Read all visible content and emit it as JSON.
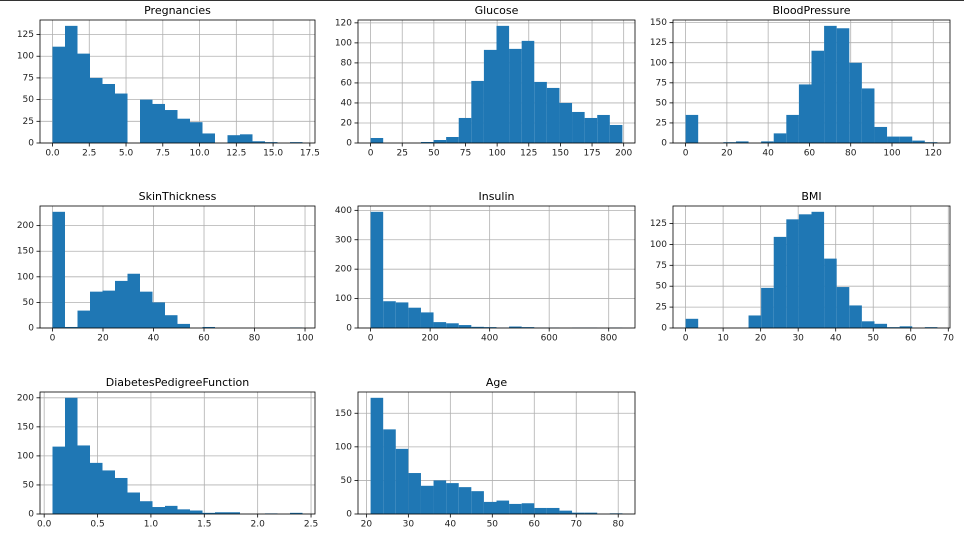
{
  "chart_data": [
    {
      "type": "histogram",
      "title": "Pregnancies",
      "color": "#1f77b4",
      "grid": true,
      "bins": [
        0,
        0.85,
        1.7,
        2.55,
        3.4,
        4.25,
        5.1,
        5.95,
        6.8,
        7.65,
        8.5,
        9.35,
        10.2,
        11.05,
        11.9,
        12.75,
        13.6,
        14.45,
        15.3,
        16.15,
        17
      ],
      "counts": [
        111,
        135,
        103,
        75,
        68,
        57,
        0,
        50,
        45,
        38,
        28,
        24,
        11,
        0,
        9,
        10,
        2,
        1,
        0,
        1
      ],
      "xlim": [
        -0.85,
        17.85
      ],
      "ylim": [
        0,
        141.75
      ],
      "xticks": [
        {
          "value": 0,
          "label": "0.0"
        },
        {
          "value": 2.5,
          "label": "2.5"
        },
        {
          "value": 5,
          "label": "5.0"
        },
        {
          "value": 7.5,
          "label": "7.5"
        },
        {
          "value": 10,
          "label": "10.0"
        },
        {
          "value": 12.5,
          "label": "12.5"
        },
        {
          "value": 15,
          "label": "15.0"
        },
        {
          "value": 17.5,
          "label": "17.5"
        }
      ],
      "yticks": [
        0,
        25,
        50,
        75,
        100,
        125
      ]
    },
    {
      "type": "histogram",
      "title": "Glucose",
      "color": "#1f77b4",
      "grid": true,
      "bins": [
        0,
        9.95,
        19.9,
        29.85,
        39.8,
        49.75,
        59.7,
        69.65,
        79.6,
        89.55,
        99.5,
        109.45,
        119.4,
        129.35,
        139.3,
        149.25,
        159.2,
        169.15,
        179.1,
        189.05,
        199
      ],
      "counts": [
        5,
        0,
        0,
        0,
        1,
        3,
        6,
        25,
        62,
        93,
        117,
        94,
        102,
        61,
        55,
        40,
        31,
        25,
        28,
        18
      ],
      "xlim": [
        -9.95,
        208.95
      ],
      "ylim": [
        0,
        122.85
      ],
      "xticks": [
        0,
        25,
        50,
        75,
        100,
        125,
        150,
        175,
        200
      ],
      "yticks": [
        0,
        20,
        40,
        60,
        80,
        100,
        120
      ]
    },
    {
      "type": "histogram",
      "title": "BloodPressure",
      "color": "#1f77b4",
      "grid": true,
      "bins": [
        0,
        6.1,
        12.2,
        18.3,
        24.4,
        30.5,
        36.6,
        42.7,
        48.8,
        54.9,
        61,
        67.1,
        73.2,
        79.3,
        85.4,
        91.5,
        97.6,
        103.7,
        109.8,
        115.9,
        122
      ],
      "counts": [
        35,
        0,
        0,
        1,
        2,
        0,
        2,
        12,
        35,
        73,
        115,
        146,
        143,
        100,
        68,
        20,
        8,
        8,
        3,
        1
      ],
      "xlim": [
        -6.1,
        128.1
      ],
      "ylim": [
        0,
        153.3
      ],
      "xticks": [
        0,
        20,
        40,
        60,
        80,
        100,
        120
      ],
      "yticks": [
        0,
        25,
        50,
        75,
        100,
        125,
        150
      ]
    },
    {
      "type": "histogram",
      "title": "SkinThickness",
      "color": "#1f77b4",
      "grid": true,
      "bins": [
        0,
        4.95,
        9.9,
        14.85,
        19.8,
        24.75,
        29.7,
        34.65,
        39.6,
        44.55,
        49.5,
        54.45,
        59.4,
        64.35,
        69.3,
        74.25,
        79.2,
        84.15,
        89.1,
        94.05,
        99
      ],
      "counts": [
        227,
        2,
        34,
        71,
        73,
        92,
        106,
        71,
        50,
        25,
        8,
        0,
        2,
        0,
        0,
        0,
        0,
        0,
        0,
        1
      ],
      "xlim": [
        -4.95,
        103.95
      ],
      "ylim": [
        0,
        238.35
      ],
      "xticks": [
        0,
        20,
        40,
        60,
        80,
        100
      ],
      "yticks": [
        0,
        50,
        100,
        150,
        200
      ]
    },
    {
      "type": "histogram",
      "title": "Insulin",
      "color": "#1f77b4",
      "grid": true,
      "bins": [
        0,
        42.3,
        84.6,
        126.9,
        169.2,
        211.5,
        253.8,
        296.1,
        338.4,
        380.7,
        423,
        465.3,
        507.6,
        549.9,
        592.2,
        634.5,
        676.8,
        719.1,
        761.4,
        803.7,
        846
      ],
      "counts": [
        395,
        91,
        87,
        69,
        53,
        20,
        16,
        10,
        4,
        3,
        1,
        5,
        3,
        1,
        1,
        0,
        1,
        1,
        0,
        1
      ],
      "xlim": [
        -42.3,
        888.3
      ],
      "ylim": [
        0,
        414.75
      ],
      "xticks": [
        0,
        200,
        400,
        600,
        800
      ],
      "yticks": [
        0,
        100,
        200,
        300,
        400
      ]
    },
    {
      "type": "histogram",
      "title": "BMI",
      "color": "#1f77b4",
      "grid": true,
      "bins": [
        0,
        3.355,
        6.71,
        10.065,
        13.42,
        16.775,
        20.13,
        23.485,
        26.84,
        30.195,
        33.55,
        36.905,
        40.26,
        43.615,
        46.97,
        50.325,
        53.68,
        57.035,
        60.39,
        63.745,
        67.1
      ],
      "counts": [
        11,
        0,
        0,
        0,
        0,
        15,
        48,
        109,
        130,
        136,
        139,
        83,
        49,
        27,
        8,
        5,
        1,
        2,
        0,
        1
      ],
      "xlim": [
        -3.355,
        70.455
      ],
      "ylim": [
        0,
        145.95
      ],
      "xticks": [
        0,
        10,
        20,
        30,
        40,
        50,
        60,
        70
      ],
      "yticks": [
        0,
        25,
        50,
        75,
        100,
        125
      ]
    },
    {
      "type": "histogram",
      "title": "DiabetesPedigreeFunction",
      "color": "#1f77b4",
      "grid": true,
      "bins": [
        0.078,
        0.1951,
        0.3122,
        0.4293,
        0.5464,
        0.6635,
        0.7806,
        0.8977,
        1.0148,
        1.1319,
        1.249,
        1.3661,
        1.4832,
        1.6003,
        1.7174,
        1.8345,
        1.9516,
        2.0687,
        2.1858,
        2.3029,
        2.42
      ],
      "counts": [
        116,
        200,
        118,
        88,
        75,
        62,
        37,
        22,
        12,
        14,
        8,
        6,
        2,
        3,
        3,
        0,
        0,
        1,
        0,
        2
      ],
      "xlim": [
        -0.0391,
        2.5371
      ],
      "ylim": [
        0,
        210
      ],
      "xticks": [
        {
          "value": 0,
          "label": "0.0"
        },
        {
          "value": 0.5,
          "label": "0.5"
        },
        {
          "value": 1,
          "label": "1.0"
        },
        {
          "value": 1.5,
          "label": "1.5"
        },
        {
          "value": 2,
          "label": "2.0"
        },
        {
          "value": 2.5,
          "label": "2.5"
        }
      ],
      "yticks": [
        0,
        50,
        100,
        150,
        200
      ]
    },
    {
      "type": "histogram",
      "title": "Age",
      "color": "#1f77b4",
      "grid": true,
      "bins": [
        21,
        24,
        27,
        30,
        33,
        36,
        39,
        42,
        45,
        48,
        51,
        54,
        57,
        60,
        63,
        66,
        69,
        72,
        75,
        78,
        81
      ],
      "counts": [
        173,
        126,
        97,
        61,
        42,
        50,
        46,
        40,
        34,
        18,
        20,
        15,
        16,
        9,
        9,
        5,
        2,
        2,
        0,
        1
      ],
      "xlim": [
        18,
        84
      ],
      "ylim": [
        0,
        181.65
      ],
      "xticks": [
        20,
        30,
        40,
        50,
        60,
        70,
        80
      ],
      "yticks": [
        0,
        50,
        100,
        150
      ]
    }
  ]
}
